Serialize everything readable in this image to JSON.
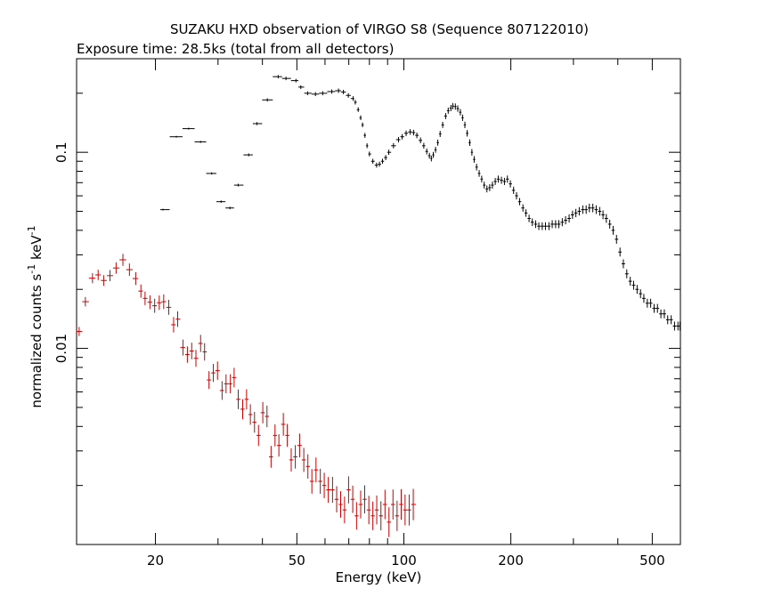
{
  "chart_data": {
    "type": "scatter",
    "title": "SUZAKU HXD observation of VIRGO S8 (Sequence 807122010)",
    "subtitle": "Exposure time: 28.5ks (total from all detectors)",
    "xlabel": "Energy (keV)",
    "ylabel": "normalized counts s",
    "ylabel_sup1": "-1",
    "ylabel_mid": " keV",
    "ylabel_sup2": "-1",
    "x_scale": "log",
    "y_scale": "log",
    "xlim": [
      12,
      600
    ],
    "ylim": [
      0.001,
      0.3
    ],
    "x_ticks": [
      {
        "v": 20,
        "label": "20"
      },
      {
        "v": 50,
        "label": "50"
      },
      {
        "v": 100,
        "label": "100"
      },
      {
        "v": 200,
        "label": "200"
      },
      {
        "v": 500,
        "label": "500"
      }
    ],
    "y_ticks": [
      {
        "v": 0.01,
        "label": "0.01"
      },
      {
        "v": 0.1,
        "label": "0.1"
      }
    ],
    "grid": false,
    "series": [
      {
        "color": "#000000",
        "points": [
          [
            21,
            0.051
          ],
          [
            22.9,
            0.12
          ],
          [
            24.8,
            0.132
          ],
          [
            26.8,
            0.113
          ],
          [
            28.8,
            0.078
          ],
          [
            30.6,
            0.056
          ],
          [
            32.4,
            0.052
          ],
          [
            34.2,
            0.068
          ],
          [
            36.6,
            0.097
          ],
          [
            38.6,
            0.14
          ],
          [
            41.3,
            0.185
          ],
          [
            44.3,
            0.243
          ],
          [
            46.6,
            0.238
          ],
          [
            49.7,
            0.232
          ],
          [
            51.3,
            0.215
          ],
          [
            53.6,
            0.2
          ],
          [
            56.4,
            0.198
          ],
          [
            59.1,
            0.2
          ],
          [
            62.7,
            0.204
          ],
          [
            65.5,
            0.206
          ],
          [
            67.6,
            0.203
          ],
          [
            69.8,
            0.195
          ],
          [
            72,
            0.188
          ],
          [
            73,
            0.18
          ],
          [
            74.4,
            0.165
          ],
          [
            75.6,
            0.15
          ],
          [
            76.5,
            0.138
          ],
          [
            77.7,
            0.122
          ],
          [
            78.8,
            0.108
          ],
          [
            80,
            0.098
          ],
          [
            81.8,
            0.09
          ],
          [
            83.8,
            0.086
          ],
          [
            85.4,
            0.087
          ],
          [
            87.1,
            0.09
          ],
          [
            88.9,
            0.094
          ],
          [
            90.7,
            0.1
          ],
          [
            93.5,
            0.108
          ],
          [
            96.6,
            0.116
          ],
          [
            98.9,
            0.12
          ],
          [
            101.5,
            0.125
          ],
          [
            104.2,
            0.127
          ],
          [
            106.5,
            0.126
          ],
          [
            108.8,
            0.122
          ],
          [
            111.4,
            0.115
          ],
          [
            113.8,
            0.108
          ],
          [
            116,
            0.101
          ],
          [
            118,
            0.096
          ],
          [
            119.5,
            0.093
          ],
          [
            121,
            0.097
          ],
          [
            122.8,
            0.103
          ],
          [
            124.6,
            0.112
          ],
          [
            126.5,
            0.124
          ],
          [
            128.6,
            0.138
          ],
          [
            131.1,
            0.153
          ],
          [
            133.3,
            0.163
          ],
          [
            135.6,
            0.168
          ],
          [
            137.3,
            0.172
          ],
          [
            139.6,
            0.171
          ],
          [
            141.8,
            0.167
          ],
          [
            144.2,
            0.16
          ],
          [
            146.3,
            0.15
          ],
          [
            148.5,
            0.138
          ],
          [
            150.7,
            0.125
          ],
          [
            153.3,
            0.112
          ],
          [
            155.4,
            0.1
          ],
          [
            157.7,
            0.092
          ],
          [
            160.2,
            0.084
          ],
          [
            162.9,
            0.078
          ],
          [
            165.6,
            0.073
          ],
          [
            168.3,
            0.068
          ],
          [
            171.3,
            0.065
          ],
          [
            174.4,
            0.066
          ],
          [
            177.5,
            0.068
          ],
          [
            180.8,
            0.071
          ],
          [
            184.3,
            0.073
          ],
          [
            188.2,
            0.072
          ],
          [
            191.9,
            0.071
          ],
          [
            195.6,
            0.073
          ],
          [
            199.4,
            0.069
          ],
          [
            203.6,
            0.064
          ],
          [
            207.5,
            0.06
          ],
          [
            211.7,
            0.056
          ],
          [
            216.3,
            0.052
          ],
          [
            220.6,
            0.049
          ],
          [
            225.1,
            0.046
          ],
          [
            229.8,
            0.044
          ],
          [
            234.9,
            0.043
          ],
          [
            239.8,
            0.042
          ],
          [
            245.1,
            0.042
          ],
          [
            250.3,
            0.042
          ],
          [
            256,
            0.042
          ],
          [
            261.5,
            0.043
          ],
          [
            267.3,
            0.043
          ],
          [
            273,
            0.043
          ],
          [
            279.1,
            0.044
          ],
          [
            285.2,
            0.045
          ],
          [
            291.8,
            0.046
          ],
          [
            298.2,
            0.048
          ],
          [
            304.8,
            0.049
          ],
          [
            311.5,
            0.05
          ],
          [
            318.8,
            0.051
          ],
          [
            325.8,
            0.051
          ],
          [
            332.7,
            0.052
          ],
          [
            340.2,
            0.052
          ],
          [
            347.7,
            0.051
          ],
          [
            355.7,
            0.05
          ],
          [
            363.4,
            0.048
          ],
          [
            371.3,
            0.046
          ],
          [
            379.6,
            0.043
          ],
          [
            388,
            0.04
          ],
          [
            396.6,
            0.036
          ],
          [
            405.7,
            0.031
          ],
          [
            414.6,
            0.027
          ],
          [
            423.9,
            0.024
          ],
          [
            433.5,
            0.022
          ],
          [
            443.1,
            0.021
          ],
          [
            453.2,
            0.02
          ],
          [
            463.4,
            0.019
          ],
          [
            473.4,
            0.018
          ],
          [
            484.2,
            0.017
          ],
          [
            494.8,
            0.017
          ],
          [
            506,
            0.016
          ],
          [
            517.1,
            0.016
          ],
          [
            528.7,
            0.015
          ],
          [
            540.6,
            0.015
          ],
          [
            552.6,
            0.014
          ],
          [
            565.2,
            0.014
          ],
          [
            577.6,
            0.013
          ],
          [
            590.6,
            0.013
          ],
          [
            598.4,
            0.013
          ]
        ]
      },
      {
        "color": "#cc0000",
        "points": [
          [
            12.2,
            0.0122
          ],
          [
            12.7,
            0.0173
          ],
          [
            13.3,
            0.0228
          ],
          [
            13.8,
            0.0237
          ],
          [
            14.3,
            0.0222
          ],
          [
            14.9,
            0.0235
          ],
          [
            15.5,
            0.0257
          ],
          [
            16.2,
            0.0283
          ],
          [
            16.9,
            0.0252
          ],
          [
            17.6,
            0.0227
          ],
          [
            18.2,
            0.0196
          ],
          [
            18.7,
            0.018
          ],
          [
            19.3,
            0.0172
          ],
          [
            19.9,
            0.0165
          ],
          [
            20.5,
            0.0171
          ],
          [
            21.1,
            0.0173
          ],
          [
            21.8,
            0.0162
          ],
          [
            22.5,
            0.0132
          ],
          [
            23.1,
            0.0141
          ],
          [
            23.9,
            0.0101
          ],
          [
            24.6,
            0.0093
          ],
          [
            25.3,
            0.0097
          ],
          [
            26,
            0.0089
          ],
          [
            26.8,
            0.0106
          ],
          [
            27.5,
            0.0096
          ],
          [
            28.3,
            0.0069
          ],
          [
            29.1,
            0.0075
          ],
          [
            29.9,
            0.0077
          ],
          [
            30.8,
            0.0061
          ],
          [
            31.6,
            0.0066
          ],
          [
            32.5,
            0.0066
          ],
          [
            33.3,
            0.0071
          ],
          [
            34.2,
            0.0055
          ],
          [
            35.2,
            0.0049
          ],
          [
            36.1,
            0.0055
          ],
          [
            37,
            0.0046
          ],
          [
            38,
            0.0042
          ],
          [
            39,
            0.0036
          ],
          [
            40.1,
            0.0047
          ],
          [
            41.2,
            0.0045
          ],
          [
            42.3,
            0.0028
          ],
          [
            43.4,
            0.0036
          ],
          [
            44.5,
            0.0032
          ],
          [
            45.8,
            0.0041
          ],
          [
            47,
            0.0036
          ],
          [
            48.2,
            0.0027
          ],
          [
            49.5,
            0.0028
          ],
          [
            50.9,
            0.0032
          ],
          [
            52.3,
            0.0027
          ],
          [
            53.7,
            0.0025
          ],
          [
            55.1,
            0.0021
          ],
          [
            56.6,
            0.0024
          ],
          [
            58.2,
            0.0021
          ],
          [
            59.7,
            0.002
          ],
          [
            61.3,
            0.0019
          ],
          [
            63,
            0.0019
          ],
          [
            64.7,
            0.0017
          ],
          [
            66.4,
            0.0016
          ],
          [
            68.1,
            0.0015
          ],
          [
            69.9,
            0.0019
          ],
          [
            71.8,
            0.0017
          ],
          [
            73.6,
            0.0014
          ],
          [
            75.6,
            0.0016
          ],
          [
            77.6,
            0.0017
          ],
          [
            79.7,
            0.0015
          ],
          [
            81.8,
            0.0014
          ],
          [
            83.9,
            0.0015
          ],
          [
            86.2,
            0.0014
          ],
          [
            88.5,
            0.0016
          ],
          [
            90.8,
            0.0013
          ],
          [
            93.2,
            0.0016
          ],
          [
            95.7,
            0.0014
          ],
          [
            98.3,
            0.0016
          ],
          [
            100.8,
            0.0015
          ],
          [
            103.5,
            0.0015
          ],
          [
            106.3,
            0.0016
          ]
        ]
      }
    ]
  }
}
